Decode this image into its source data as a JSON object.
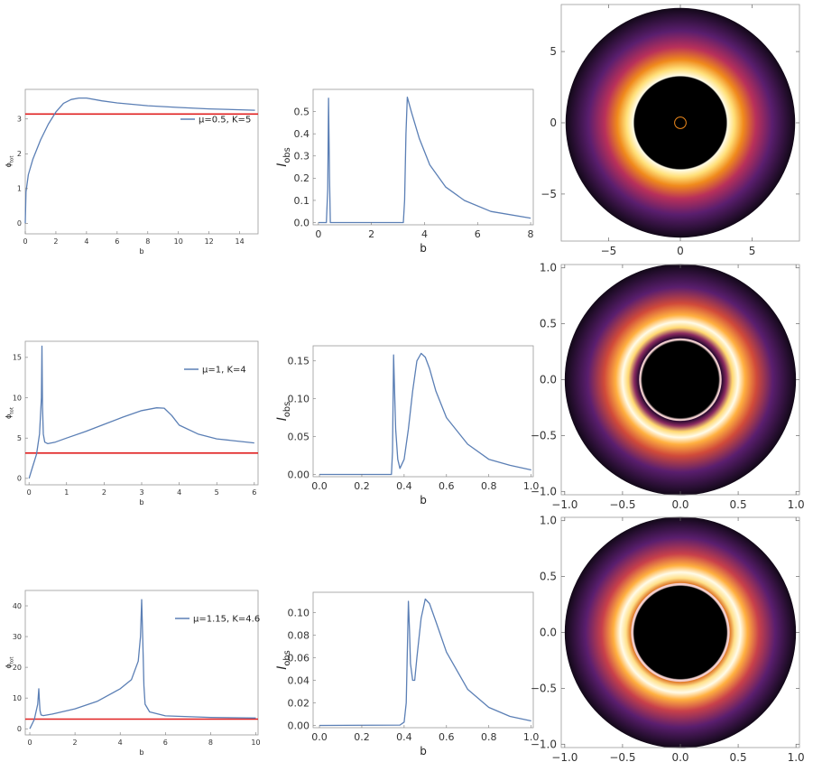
{
  "colors": {
    "curve": "#5b7fb5",
    "reference_line": "#e02020",
    "frame": "#9a9a9a",
    "ring_bright": "#fffbe8",
    "ring_orange": "#f08a1c",
    "ring_purple": "#5a1e6e",
    "ring_dark": "#120818",
    "shadow": "#000000"
  },
  "chart_data": [
    {
      "id": "phi-mu05",
      "type": "line",
      "xlabel": "b",
      "ylabel": "ϕ_tot",
      "xlim": [
        0,
        15.2
      ],
      "ylim": [
        -0.3,
        3.85
      ],
      "xticks": [
        0,
        2,
        4,
        6,
        8,
        10,
        12,
        14
      ],
      "yticks": [
        0,
        1,
        2,
        3
      ],
      "legend": "μ=0.5, K=5",
      "legend_placement": "right",
      "reference_y": 3.14159,
      "series": [
        {
          "name": "μ=0.5, K=5",
          "x": [
            0,
            0.05,
            0.2,
            0.5,
            1,
            1.5,
            2,
            2.5,
            3,
            3.5,
            4,
            5,
            6,
            8,
            10,
            12,
            15
          ],
          "y": [
            0,
            0.9,
            1.4,
            1.85,
            2.4,
            2.85,
            3.2,
            3.45,
            3.56,
            3.6,
            3.6,
            3.52,
            3.46,
            3.38,
            3.33,
            3.29,
            3.25
          ]
        }
      ]
    },
    {
      "id": "iobs-mu05",
      "type": "line",
      "xlabel": "b",
      "ylabel": "I_obs",
      "xlim": [
        -0.2,
        8.1
      ],
      "ylim": [
        -0.01,
        0.6
      ],
      "xticks": [
        0,
        2,
        4,
        6,
        8
      ],
      "yticks": [
        0.0,
        0.1,
        0.2,
        0.3,
        0.4,
        0.5
      ],
      "series": [
        {
          "x": [
            0,
            0.3,
            0.35,
            0.38,
            0.42,
            0.45,
            3.2,
            3.25,
            3.3,
            3.35,
            3.5,
            3.8,
            4.2,
            4.8,
            5.5,
            6.5,
            8
          ],
          "y": [
            0,
            0,
            0.15,
            0.56,
            0.2,
            0,
            0,
            0.1,
            0.4,
            0.565,
            0.5,
            0.38,
            0.26,
            0.16,
            0.1,
            0.05,
            0.02
          ]
        }
      ]
    },
    {
      "id": "phi-mu1",
      "type": "line",
      "xlabel": "b",
      "ylabel": "ϕ_tot",
      "xlim": [
        -0.1,
        6.1
      ],
      "ylim": [
        -0.8,
        17
      ],
      "xticks": [
        0,
        1,
        2,
        3,
        4,
        5,
        6
      ],
      "yticks": [
        0,
        5,
        10,
        15
      ],
      "legend": "μ=1, K=4",
      "legend_placement": "top-right",
      "reference_y": 3.14159,
      "series": [
        {
          "name": "μ=1, K=4",
          "x": [
            0,
            0.1,
            0.2,
            0.28,
            0.33,
            0.345,
            0.36,
            0.38,
            0.42,
            0.5,
            0.7,
            1,
            1.5,
            2,
            2.5,
            3,
            3.4,
            3.6,
            3.8,
            4,
            4.5,
            5,
            6
          ],
          "y": [
            0,
            1.5,
            3,
            5.5,
            10,
            16.4,
            9,
            5.5,
            4.5,
            4.3,
            4.5,
            5,
            5.8,
            6.7,
            7.6,
            8.4,
            8.75,
            8.7,
            7.8,
            6.6,
            5.5,
            4.9,
            4.4
          ]
        }
      ]
    },
    {
      "id": "iobs-mu1",
      "type": "line",
      "xlabel": "b",
      "ylabel": "I_obs",
      "xlim": [
        -0.03,
        1.01
      ],
      "ylim": [
        -0.003,
        0.17
      ],
      "xticks": [
        0.0,
        0.2,
        0.4,
        0.6,
        0.8,
        1.0
      ],
      "yticks": [
        0.0,
        0.05,
        0.1,
        0.15
      ],
      "series": [
        {
          "x": [
            0,
            0.34,
            0.345,
            0.35,
            0.355,
            0.36,
            0.37,
            0.38,
            0.4,
            0.42,
            0.44,
            0.46,
            0.48,
            0.5,
            0.52,
            0.55,
            0.6,
            0.7,
            0.8,
            0.9,
            1.0
          ],
          "y": [
            0,
            0,
            0.03,
            0.158,
            0.11,
            0.06,
            0.02,
            0.008,
            0.02,
            0.06,
            0.11,
            0.15,
            0.16,
            0.155,
            0.14,
            0.11,
            0.075,
            0.04,
            0.02,
            0.012,
            0.006
          ]
        }
      ]
    },
    {
      "id": "phi-mu115",
      "type": "line",
      "xlabel": "b",
      "ylabel": "ϕ_tot",
      "xlim": [
        -0.2,
        10.1
      ],
      "ylim": [
        -2,
        45
      ],
      "xticks": [
        0,
        2,
        4,
        6,
        8,
        10
      ],
      "yticks": [
        0,
        10,
        20,
        30,
        40
      ],
      "legend": "μ=1.15, K=4.6",
      "legend_placement": "top-right",
      "reference_y": 3.14159,
      "series": [
        {
          "name": "μ=1.15, K=4.6",
          "x": [
            0,
            0.2,
            0.35,
            0.4,
            0.42,
            0.45,
            0.5,
            0.6,
            1,
            2,
            3,
            4,
            4.5,
            4.8,
            4.9,
            4.95,
            5.0,
            5.05,
            5.1,
            5.3,
            6,
            8,
            10
          ],
          "y": [
            0,
            3,
            8,
            13,
            10,
            6,
            4.5,
            4.3,
            4.8,
            6.5,
            9,
            13,
            16,
            22,
            30,
            42,
            28,
            14,
            8,
            5.5,
            4.2,
            3.7,
            3.5
          ]
        }
      ]
    },
    {
      "id": "iobs-mu115",
      "type": "line",
      "xlabel": "b",
      "ylabel": "I_obs",
      "xlim": [
        -0.03,
        1.01
      ],
      "ylim": [
        -0.002,
        0.118
      ],
      "xticks": [
        0.0,
        0.2,
        0.4,
        0.6,
        0.8,
        1.0
      ],
      "yticks": [
        0.0,
        0.02,
        0.04,
        0.06,
        0.08,
        0.1
      ],
      "series": [
        {
          "x": [
            0,
            0.38,
            0.4,
            0.41,
            0.415,
            0.42,
            0.425,
            0.43,
            0.44,
            0.45,
            0.46,
            0.48,
            0.5,
            0.52,
            0.55,
            0.6,
            0.7,
            0.8,
            0.9,
            1.0
          ],
          "y": [
            0,
            0.0003,
            0.003,
            0.02,
            0.065,
            0.11,
            0.085,
            0.055,
            0.04,
            0.04,
            0.06,
            0.095,
            0.112,
            0.108,
            0.092,
            0.065,
            0.032,
            0.016,
            0.008,
            0.004
          ]
        }
      ]
    },
    {
      "id": "image-mu05",
      "type": "heatmap",
      "xlim": [
        -8.3,
        8.3
      ],
      "ylim": [
        -8.3,
        8.3
      ],
      "xticks": [
        -5,
        0,
        5
      ],
      "yticks": [
        -5,
        0,
        5
      ],
      "outer_radius": 8,
      "shadow_radius": 3.2,
      "inner_ring_radius": 0.4,
      "peak_radius": 3.4
    },
    {
      "id": "image-mu1",
      "type": "heatmap",
      "xlim": [
        -1.03,
        1.03
      ],
      "ylim": [
        -1.03,
        1.03
      ],
      "xticks": [
        -1.0,
        -0.5,
        0.0,
        0.5,
        1.0
      ],
      "yticks": [
        -1.0,
        -0.5,
        0.0,
        0.5,
        1.0
      ],
      "outer_radius": 1.0,
      "shadow_radius": 0.35,
      "inner_ring_radius": 0.35,
      "peak_radius": 0.48
    },
    {
      "id": "image-mu115",
      "type": "heatmap",
      "xlim": [
        -1.03,
        1.03
      ],
      "ylim": [
        -1.03,
        1.03
      ],
      "xticks": [
        -1.0,
        -0.5,
        0.0,
        0.5,
        1.0
      ],
      "yticks": [
        -1.0,
        -0.5,
        0.0,
        0.5,
        1.0
      ],
      "outer_radius": 1.0,
      "shadow_radius": 0.41,
      "inner_ring_radius": 0.42,
      "peak_radius": 0.5
    }
  ]
}
